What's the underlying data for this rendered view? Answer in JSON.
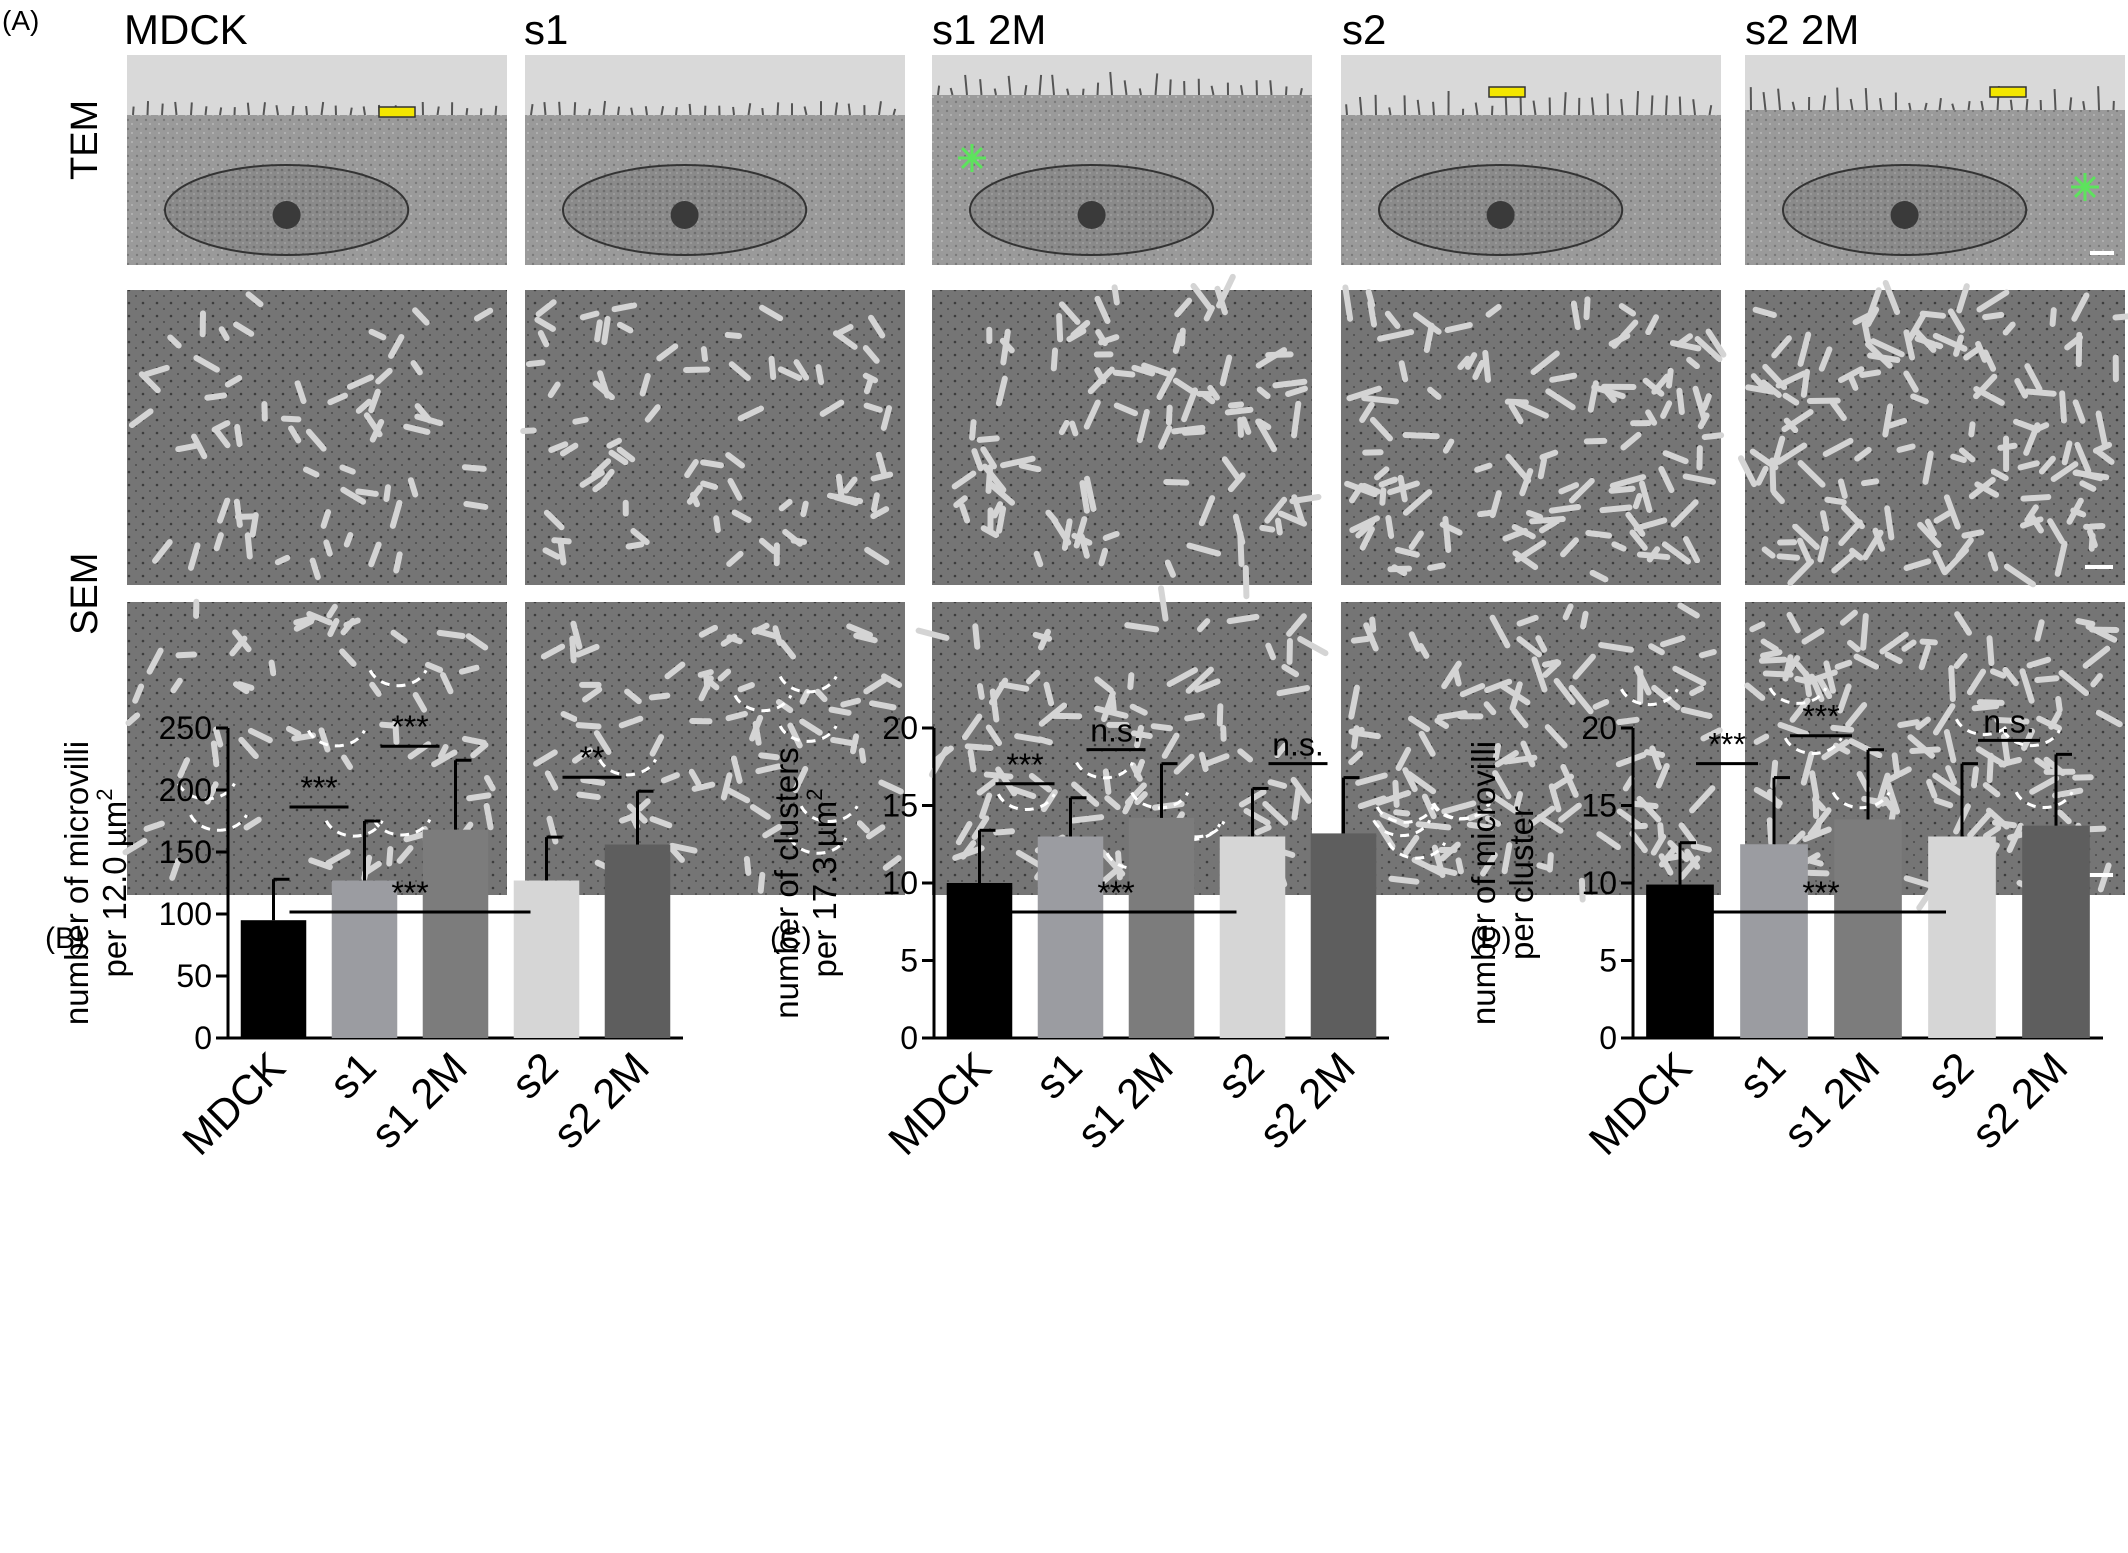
{
  "panel_a": {
    "letter": "(A)",
    "columns": [
      "MDCK",
      "s1",
      "s1 2M",
      "s2",
      "s2 2M"
    ],
    "row_labels": {
      "tem": "TEM",
      "sem": "SEM"
    }
  },
  "chart_data": [
    {
      "type": "bar",
      "panel": "(B)",
      "ylabel_line1": "number of microvilli",
      "ylabel_line2": "per 12.0 µm",
      "ylabel_sup": "2",
      "categories": [
        "MDCK",
        "s1",
        "s1 2M",
        "s2",
        "s2 2M"
      ],
      "values": [
        95,
        127,
        168,
        127,
        156
      ],
      "errors": [
        33,
        48,
        56,
        35,
        43
      ],
      "bar_colors": [
        "#000000",
        "#9b9ca1",
        "#7c7c7c",
        "#d6d6d6",
        "#5e5e5e"
      ],
      "ylim": [
        0,
        250
      ],
      "yticks": [
        0,
        50,
        100,
        150,
        200,
        250
      ],
      "significance": [
        {
          "from": 0,
          "to": 1,
          "label": "***"
        },
        {
          "from": 1,
          "to": 2,
          "label": "***"
        },
        {
          "from": 3,
          "to": 4,
          "label": "**"
        },
        {
          "from": 0,
          "to": 3,
          "label": "***"
        }
      ]
    },
    {
      "type": "bar",
      "panel": "(C)",
      "ylabel_line1": "number of clusters",
      "ylabel_line2": "per 17.3 µm",
      "ylabel_sup": "2",
      "categories": [
        "MDCK",
        "s1",
        "s1 2M",
        "s2",
        "s2 2M"
      ],
      "values": [
        10.0,
        13.0,
        14.2,
        13.0,
        13.2
      ],
      "errors": [
        3.4,
        2.5,
        3.5,
        3.1,
        3.6
      ],
      "bar_colors": [
        "#000000",
        "#9b9ca1",
        "#7c7c7c",
        "#d6d6d6",
        "#5e5e5e"
      ],
      "ylim": [
        0,
        20
      ],
      "yticks": [
        0,
        5,
        10,
        15,
        20
      ],
      "significance": [
        {
          "from": 0,
          "to": 1,
          "label": "***"
        },
        {
          "from": 1,
          "to": 2,
          "label": "n.s."
        },
        {
          "from": 3,
          "to": 4,
          "label": "n.s."
        },
        {
          "from": 0,
          "to": 3,
          "label": "***"
        }
      ]
    },
    {
      "type": "bar",
      "panel": "(D)",
      "ylabel_line1": "number of microvilli",
      "ylabel_line2": "per cluster",
      "ylabel_sup": "",
      "categories": [
        "MDCK",
        "s1",
        "s1 2M",
        "s2",
        "s2 2M"
      ],
      "values": [
        9.9,
        12.5,
        14.1,
        13.0,
        13.7
      ],
      "errors": [
        2.7,
        4.3,
        4.5,
        4.7,
        4.6
      ],
      "bar_colors": [
        "#000000",
        "#9b9ca1",
        "#7c7c7c",
        "#d6d6d6",
        "#5e5e5e"
      ],
      "ylim": [
        0,
        20
      ],
      "yticks": [
        0,
        5,
        10,
        15,
        20
      ],
      "significance": [
        {
          "from": 0,
          "to": 1,
          "label": "***"
        },
        {
          "from": 1,
          "to": 2,
          "label": "***"
        },
        {
          "from": 3,
          "to": 4,
          "label": "n.s."
        },
        {
          "from": 0,
          "to": 3,
          "label": "***"
        }
      ]
    }
  ]
}
